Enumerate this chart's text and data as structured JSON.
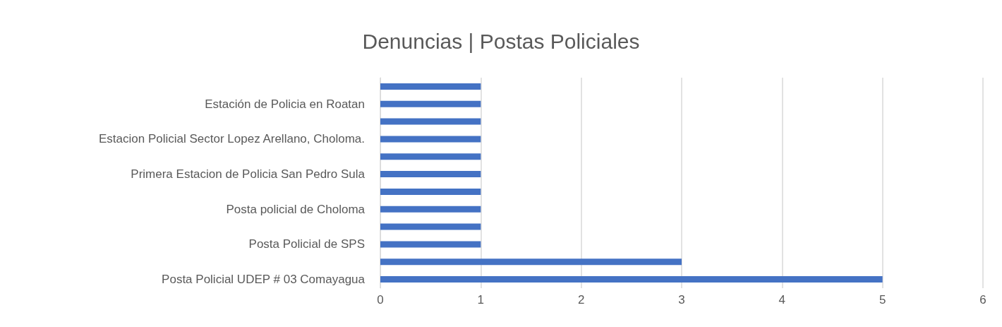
{
  "chart_data": {
    "type": "bar",
    "orientation": "horizontal",
    "title": "Denuncias | Postas Policiales",
    "categories": [
      null,
      "Estación de Policia en Roatan",
      null,
      "Estacion Policial Sector Lopez Arellano, Choloma.",
      null,
      "Primera Estacion de Policia San Pedro Sula",
      null,
      "Posta policial de Choloma",
      null,
      "Posta Policial de SPS",
      null,
      "Posta Policial UDEP # 03 Comayagua"
    ],
    "values": [
      1,
      1,
      1,
      1,
      1,
      1,
      1,
      1,
      1,
      1,
      3,
      5
    ],
    "color": "#4472c4",
    "xlim": [
      0,
      6
    ],
    "xticks": [
      0,
      1,
      2,
      3,
      4,
      5,
      6
    ],
    "grid": "x"
  }
}
